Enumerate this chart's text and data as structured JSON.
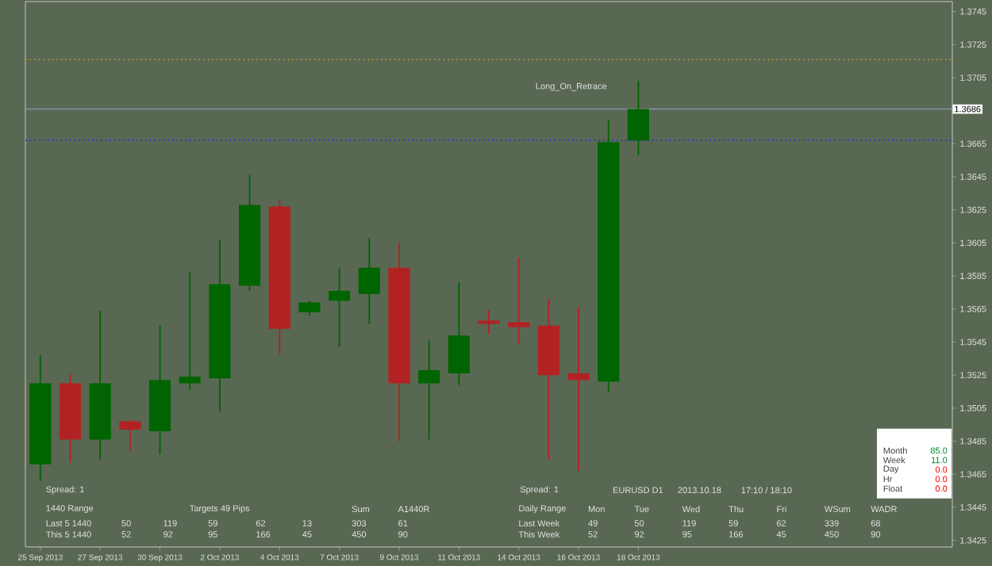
{
  "chart_data": {
    "type": "candlestick",
    "categories": [
      "25 Sep 2013",
      null,
      "27 Sep 2013",
      null,
      "30 Sep 2013",
      null,
      "2 Oct 2013",
      null,
      "4 Oct 2013",
      null,
      "7 Oct 2013",
      null,
      "9 Oct 2013",
      null,
      "11 Oct 2013",
      null,
      "14 Oct 2013",
      null,
      "16 Oct 2013",
      null,
      "18 Oct 2013",
      null,
      null,
      null,
      null,
      null,
      null,
      null,
      null,
      null,
      null
    ],
    "ohlc": [
      [
        1.3471,
        1.3537,
        1.3461,
        1.352
      ],
      [
        1.352,
        1.3526,
        1.3472,
        1.3486
      ],
      [
        1.3486,
        1.3564,
        1.3474,
        1.352
      ],
      [
        1.3497,
        1.3498,
        1.3479,
        1.3492
      ],
      [
        1.3491,
        1.3555,
        1.3477,
        1.3522
      ],
      [
        1.352,
        1.3587,
        1.3516,
        1.3524
      ],
      [
        1.3523,
        1.3607,
        1.3503,
        1.358
      ],
      [
        1.3579,
        1.3646,
        1.3576,
        1.3628
      ],
      [
        1.3627,
        1.3631,
        1.3538,
        1.3553
      ],
      [
        1.3563,
        1.357,
        1.3561,
        1.3569
      ],
      [
        1.357,
        1.359,
        1.3542,
        1.3576
      ],
      [
        1.3574,
        1.3608,
        1.3556,
        1.359
      ],
      [
        1.359,
        1.3605,
        1.3485,
        1.352
      ],
      [
        1.352,
        1.3546,
        1.3486,
        1.3528
      ],
      [
        1.3526,
        1.3581,
        1.3519,
        1.3549
      ],
      [
        1.3558,
        1.3564,
        1.355,
        1.3556
      ],
      [
        1.3557,
        1.3596,
        1.3544,
        1.3554
      ],
      [
        1.3555,
        1.3571,
        1.3474,
        1.3525
      ],
      [
        1.3526,
        1.3566,
        1.3467,
        1.3522
      ],
      [
        1.3521,
        1.3679,
        1.3515,
        1.3666
      ],
      [
        1.3667,
        1.3703,
        1.3658,
        1.3686
      ],
      null,
      null,
      null,
      null,
      null,
      null,
      null,
      null,
      null,
      null
    ],
    "colors": [
      "#006400",
      "#b22222",
      "#006400",
      "#b22222",
      "#006400",
      "#006400",
      "#006400",
      "#006400",
      "#b22222",
      "#006400",
      "#006400",
      "#006400",
      "#b22222",
      "#006400",
      "#006400",
      "#b22222",
      "#b22222",
      "#b22222",
      "#b22222",
      "#006400",
      "#006400",
      null,
      null,
      null,
      null,
      null,
      null,
      null,
      null,
      null,
      null
    ],
    "ylim": [
      1.3421,
      1.3751
    ],
    "yticks": [
      1.3425,
      1.3445,
      1.3465,
      1.3485,
      1.3505,
      1.3525,
      1.3545,
      1.3565,
      1.3585,
      1.3605,
      1.3625,
      1.3645,
      1.3665,
      1.3705,
      1.3725,
      1.3745
    ],
    "ref_lines": [
      {
        "axis": "y",
        "value": 1.3686,
        "label": "1.3686",
        "color": "#8494a4",
        "line_style": "solid"
      },
      {
        "axis": "y",
        "value": 1.3716,
        "color": "#c8a030",
        "line_style": "dotted"
      },
      {
        "axis": "y",
        "value": 1.3667,
        "color": "#2a2ae0",
        "line_style": "dotted"
      }
    ],
    "annotations": [
      "Spread: 1",
      "1440 Range",
      "Targets 49 Pips",
      "Sum",
      "A1440R",
      "Last 5 1440",
      "50",
      "119",
      "59",
      "62",
      "13",
      "303",
      "61",
      "This 5 1440",
      "52",
      "92",
      "95",
      "166",
      "45",
      "450",
      "90",
      "Spread: 1",
      "EURUSD D1",
      "2013.10.18",
      "17:10 / 18:10",
      "Daily Range",
      "Mon",
      "Tue",
      "Wed",
      "Thu",
      "Fri",
      "WSum",
      "WADR",
      "Last Week",
      "49",
      "50",
      "119",
      "59",
      "62",
      "339",
      "68",
      "This Week",
      "52",
      "92",
      "95",
      "166",
      "45",
      "450",
      "90",
      "Long_On_Retrace",
      "Month",
      "Week",
      "Day",
      "Hr",
      "Float",
      "85.0",
      "11.0",
      "0.0",
      "0.0",
      "0.0"
    ]
  }
}
